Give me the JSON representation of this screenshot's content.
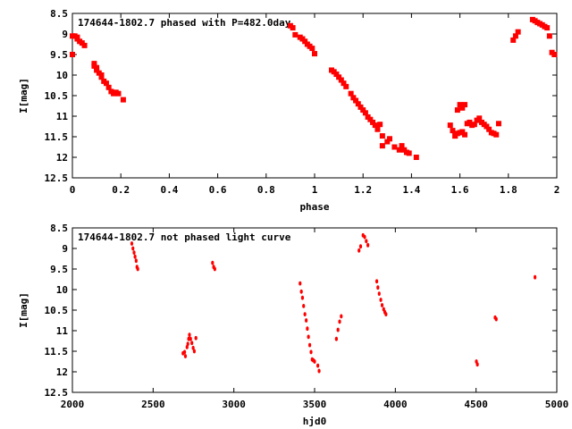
{
  "chart_data": [
    {
      "type": "scatter",
      "title": "174644-1802.7 phased with P=482.0day",
      "xlabel": "phase",
      "ylabel": "I[mag]",
      "xlim": [
        0,
        2
      ],
      "ylim": [
        12.5,
        8.5
      ],
      "y_inverted": true,
      "xticks": [
        "0",
        "0.2",
        "0.4",
        "0.6",
        "0.8",
        "1",
        "1.2",
        "1.4",
        "1.6",
        "1.8",
        "2"
      ],
      "yticks": [
        "8.5",
        "9",
        "9.5",
        "10",
        "10.5",
        "11",
        "11.5",
        "12",
        "12.5"
      ],
      "marker": "square",
      "color": "#ff0000",
      "points": [
        [
          0.0,
          9.5
        ],
        [
          0.0,
          9.05
        ],
        [
          0.01,
          9.05
        ],
        [
          0.02,
          9.08
        ],
        [
          0.02,
          9.12
        ],
        [
          0.03,
          9.18
        ],
        [
          0.04,
          9.22
        ],
        [
          0.05,
          9.28
        ],
        [
          0.09,
          9.72
        ],
        [
          0.09,
          9.78
        ],
        [
          0.1,
          9.82
        ],
        [
          0.1,
          9.88
        ],
        [
          0.11,
          9.95
        ],
        [
          0.12,
          10.0
        ],
        [
          0.12,
          10.05
        ],
        [
          0.13,
          10.15
        ],
        [
          0.14,
          10.2
        ],
        [
          0.15,
          10.3
        ],
        [
          0.16,
          10.4
        ],
        [
          0.17,
          10.45
        ],
        [
          0.18,
          10.42
        ],
        [
          0.19,
          10.45
        ],
        [
          0.21,
          10.6
        ],
        [
          0.9,
          8.8
        ],
        [
          0.91,
          8.85
        ],
        [
          0.92,
          9.02
        ],
        [
          0.94,
          9.08
        ],
        [
          0.95,
          9.12
        ],
        [
          0.96,
          9.18
        ],
        [
          0.97,
          9.25
        ],
        [
          0.98,
          9.3
        ],
        [
          0.99,
          9.35
        ],
        [
          1.0,
          9.48
        ],
        [
          1.07,
          9.88
        ],
        [
          1.08,
          9.92
        ],
        [
          1.09,
          9.98
        ],
        [
          1.1,
          10.05
        ],
        [
          1.11,
          10.12
        ],
        [
          1.12,
          10.2
        ],
        [
          1.13,
          10.28
        ],
        [
          1.15,
          10.45
        ],
        [
          1.16,
          10.55
        ],
        [
          1.17,
          10.62
        ],
        [
          1.18,
          10.7
        ],
        [
          1.19,
          10.78
        ],
        [
          1.2,
          10.85
        ],
        [
          1.21,
          10.92
        ],
        [
          1.22,
          11.02
        ],
        [
          1.23,
          11.08
        ],
        [
          1.24,
          11.15
        ],
        [
          1.25,
          11.22
        ],
        [
          1.26,
          11.32
        ],
        [
          1.27,
          11.2
        ],
        [
          1.28,
          11.48
        ],
        [
          1.28,
          11.72
        ],
        [
          1.3,
          11.62
        ],
        [
          1.31,
          11.55
        ],
        [
          1.33,
          11.75
        ],
        [
          1.35,
          11.82
        ],
        [
          1.36,
          11.72
        ],
        [
          1.37,
          11.82
        ],
        [
          1.38,
          11.88
        ],
        [
          1.39,
          11.9
        ],
        [
          1.42,
          12.0
        ],
        [
          1.56,
          11.22
        ],
        [
          1.57,
          11.35
        ],
        [
          1.58,
          11.48
        ],
        [
          1.58,
          11.48
        ],
        [
          1.59,
          10.85
        ],
        [
          1.59,
          11.42
        ],
        [
          1.6,
          10.72
        ],
        [
          1.6,
          11.4
        ],
        [
          1.61,
          10.8
        ],
        [
          1.61,
          11.38
        ],
        [
          1.62,
          10.72
        ],
        [
          1.62,
          11.45
        ],
        [
          1.63,
          11.18
        ],
        [
          1.64,
          11.15
        ],
        [
          1.65,
          11.22
        ],
        [
          1.66,
          11.2
        ],
        [
          1.67,
          11.1
        ],
        [
          1.68,
          11.05
        ],
        [
          1.69,
          11.15
        ],
        [
          1.7,
          11.2
        ],
        [
          1.71,
          11.25
        ],
        [
          1.72,
          11.32
        ],
        [
          1.73,
          11.4
        ],
        [
          1.74,
          11.42
        ],
        [
          1.75,
          11.45
        ],
        [
          1.76,
          11.18
        ],
        [
          1.82,
          9.15
        ],
        [
          1.83,
          9.05
        ],
        [
          1.84,
          8.95
        ],
        [
          1.9,
          8.65
        ],
        [
          1.91,
          8.68
        ],
        [
          1.92,
          8.72
        ],
        [
          1.93,
          8.75
        ],
        [
          1.94,
          8.78
        ],
        [
          1.95,
          8.82
        ],
        [
          1.96,
          8.85
        ],
        [
          1.97,
          9.05
        ],
        [
          1.98,
          9.45
        ],
        [
          1.99,
          9.5
        ]
      ]
    },
    {
      "type": "scatter",
      "title": "174644-1802.7 not phased light curve",
      "xlabel": "hjd0",
      "ylabel": "I[mag]",
      "xlim": [
        2000,
        5000
      ],
      "ylim": [
        12.5,
        8.5
      ],
      "y_inverted": true,
      "xticks": [
        "2000",
        "2500",
        "3000",
        "3500",
        "4000",
        "4500",
        "5000"
      ],
      "yticks": [
        "8.5",
        "9",
        "9.5",
        "10",
        "10.5",
        "11",
        "11.5",
        "12",
        "12.5"
      ],
      "marker": "dot",
      "color": "#ff0000",
      "points": [
        [
          2368,
          8.88
        ],
        [
          2375,
          9.0
        ],
        [
          2382,
          9.1
        ],
        [
          2388,
          9.2
        ],
        [
          2395,
          9.3
        ],
        [
          2400,
          9.45
        ],
        [
          2405,
          9.5
        ],
        [
          2868,
          9.35
        ],
        [
          2875,
          9.45
        ],
        [
          2882,
          9.5
        ],
        [
          2685,
          11.55
        ],
        [
          2695,
          11.52
        ],
        [
          2700,
          11.62
        ],
        [
          2710,
          11.4
        ],
        [
          2715,
          11.32
        ],
        [
          2720,
          11.2
        ],
        [
          2725,
          11.1
        ],
        [
          2732,
          11.2
        ],
        [
          2740,
          11.3
        ],
        [
          2748,
          11.42
        ],
        [
          2755,
          11.5
        ],
        [
          2765,
          11.18
        ],
        [
          3410,
          9.85
        ],
        [
          3418,
          10.05
        ],
        [
          3425,
          10.2
        ],
        [
          3432,
          10.4
        ],
        [
          3440,
          10.6
        ],
        [
          3448,
          10.75
        ],
        [
          3455,
          10.95
        ],
        [
          3462,
          11.15
        ],
        [
          3470,
          11.35
        ],
        [
          3478,
          11.52
        ],
        [
          3485,
          11.7
        ],
        [
          3492,
          11.72
        ],
        [
          3500,
          11.75
        ],
        [
          3520,
          11.85
        ],
        [
          3528,
          11.98
        ],
        [
          3635,
          11.2
        ],
        [
          3645,
          10.98
        ],
        [
          3655,
          10.78
        ],
        [
          3665,
          10.65
        ],
        [
          3775,
          9.05
        ],
        [
          3785,
          8.95
        ],
        [
          3800,
          8.68
        ],
        [
          3810,
          8.72
        ],
        [
          3820,
          8.82
        ],
        [
          3830,
          8.92
        ],
        [
          3885,
          9.8
        ],
        [
          3892,
          9.95
        ],
        [
          3900,
          10.1
        ],
        [
          3910,
          10.25
        ],
        [
          3918,
          10.38
        ],
        [
          3928,
          10.48
        ],
        [
          3935,
          10.55
        ],
        [
          3942,
          10.6
        ],
        [
          4502,
          11.75
        ],
        [
          4508,
          11.82
        ],
        [
          4618,
          10.68
        ],
        [
          4625,
          10.72
        ],
        [
          4865,
          9.7
        ]
      ]
    }
  ]
}
